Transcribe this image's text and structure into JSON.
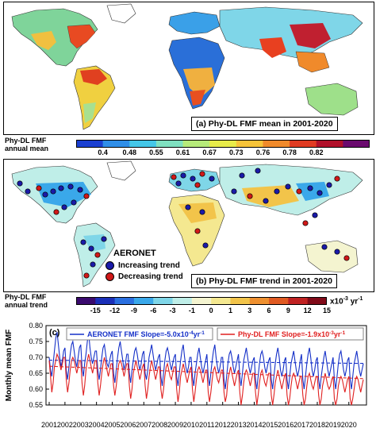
{
  "chart_data": [
    {
      "type": "heatmap",
      "title": "(a) Phy-DL FMF mean in 2001-2020",
      "colorbar": {
        "label_line1": "Phy-DL FMF",
        "label_line2": "annual mean",
        "ticks": [
          "0.4",
          "0.48",
          "0.55",
          "0.61",
          "0.67",
          "0.73",
          "0.76",
          "0.78",
          "0.82"
        ],
        "colors": [
          "#1a3fd1",
          "#2f8ee8",
          "#44c7e8",
          "#7fe0c0",
          "#b6ea7a",
          "#e8ec4a",
          "#f7c43a",
          "#f08a2b",
          "#e03b22",
          "#b0102a",
          "#6a0a6e"
        ]
      }
    },
    {
      "type": "heatmap",
      "title": "(b) Phy-DL FMF trend in 2001-2020",
      "annotation": "AERONET",
      "legend": [
        {
          "label": "Increasing trend",
          "color": "#1a1aa8"
        },
        {
          "label": "Decreasing trend",
          "color": "#d01818"
        }
      ],
      "colorbar": {
        "label_line1": "Phy-DL FMF",
        "label_line2": "annual trend",
        "ticks": [
          "-15",
          "-12",
          "-9",
          "-6",
          "-3",
          "-1",
          "0",
          "1",
          "3",
          "6",
          "9",
          "12",
          "15"
        ],
        "unit": "x10",
        "unit_exp": "-3",
        "unit_suffix": "yr",
        "unit_suffix_exp": "-1",
        "colors": [
          "#3a0a6e",
          "#1a2fb8",
          "#2a6fe0",
          "#3aa8ea",
          "#7fd6e8",
          "#bfeee8",
          "#f4f4d0",
          "#f4e890",
          "#f2c44a",
          "#ee9030",
          "#e05a22",
          "#c02222",
          "#800a18"
        ]
      }
    },
    {
      "type": "line",
      "panel_label": "(c)",
      "ylabel": "Monthly mean FMF",
      "ylim": [
        0.55,
        0.8
      ],
      "yticks": [
        "0.55",
        "0.60",
        "0.65",
        "0.70",
        "0.75",
        "0.80"
      ],
      "xticks": [
        "2001",
        "2002",
        "2003",
        "2004",
        "2005",
        "2006",
        "2007",
        "2008",
        "2009",
        "2010",
        "2011",
        "2012",
        "2013",
        "2014",
        "2015",
        "2016",
        "2017",
        "2018",
        "2019",
        "2020"
      ],
      "series": [
        {
          "name": "AERONET FMF Slope=-5.0x10",
          "name_exp": "-4",
          "name_suffix": "yr",
          "name_suffix_exp": "-1",
          "color": "#1530c8",
          "trend": [
            0.691,
            0.681
          ],
          "values": [
            0.7,
            0.66,
            0.64,
            0.68,
            0.72,
            0.76,
            0.78,
            0.74,
            0.7,
            0.67,
            0.69,
            0.72,
            0.73,
            0.66,
            0.63,
            0.67,
            0.71,
            0.74,
            0.75,
            0.72,
            0.69,
            0.67,
            0.7,
            0.73,
            0.74,
            0.67,
            0.64,
            0.68,
            0.71,
            0.75,
            0.78,
            0.73,
            0.7,
            0.68,
            0.7,
            0.72,
            0.72,
            0.66,
            0.63,
            0.66,
            0.7,
            0.73,
            0.74,
            0.71,
            0.68,
            0.67,
            0.69,
            0.71,
            0.72,
            0.65,
            0.62,
            0.66,
            0.7,
            0.73,
            0.75,
            0.72,
            0.69,
            0.66,
            0.68,
            0.71,
            0.71,
            0.65,
            0.62,
            0.66,
            0.69,
            0.72,
            0.73,
            0.71,
            0.68,
            0.66,
            0.68,
            0.71,
            0.72,
            0.65,
            0.63,
            0.66,
            0.7,
            0.72,
            0.74,
            0.71,
            0.68,
            0.66,
            0.68,
            0.7,
            0.71,
            0.64,
            0.61,
            0.65,
            0.69,
            0.72,
            0.73,
            0.71,
            0.68,
            0.66,
            0.68,
            0.7,
            0.71,
            0.64,
            0.61,
            0.65,
            0.69,
            0.72,
            0.74,
            0.7,
            0.67,
            0.65,
            0.67,
            0.7,
            0.7,
            0.64,
            0.61,
            0.65,
            0.68,
            0.71,
            0.73,
            0.7,
            0.67,
            0.65,
            0.67,
            0.69,
            0.71,
            0.64,
            0.61,
            0.65,
            0.69,
            0.72,
            0.74,
            0.7,
            0.67,
            0.65,
            0.67,
            0.7,
            0.7,
            0.63,
            0.6,
            0.64,
            0.68,
            0.71,
            0.72,
            0.7,
            0.67,
            0.65,
            0.67,
            0.69,
            0.71,
            0.64,
            0.61,
            0.65,
            0.69,
            0.71,
            0.73,
            0.7,
            0.67,
            0.65,
            0.67,
            0.69,
            0.7,
            0.63,
            0.6,
            0.64,
            0.68,
            0.71,
            0.72,
            0.7,
            0.67,
            0.65,
            0.67,
            0.69,
            0.7,
            0.63,
            0.6,
            0.64,
            0.68,
            0.71,
            0.73,
            0.7,
            0.66,
            0.64,
            0.66,
            0.69,
            0.7,
            0.63,
            0.6,
            0.64,
            0.68,
            0.7,
            0.72,
            0.69,
            0.66,
            0.64,
            0.66,
            0.69,
            0.71,
            0.63,
            0.6,
            0.64,
            0.68,
            0.71,
            0.73,
            0.7,
            0.66,
            0.64,
            0.66,
            0.69,
            0.7,
            0.63,
            0.6,
            0.64,
            0.67,
            0.7,
            0.72,
            0.69,
            0.66,
            0.64,
            0.66,
            0.68,
            0.7,
            0.63,
            0.6,
            0.64,
            0.68,
            0.71,
            0.72,
            0.69,
            0.66,
            0.64,
            0.66,
            0.69,
            0.7,
            0.63,
            0.6,
            0.64,
            0.68,
            0.7,
            0.72,
            0.69,
            0.66,
            0.64,
            0.66,
            0.68
          ]
        },
        {
          "name": "Phy-DL FMF Slope=-1.9x10",
          "name_exp": "-3",
          "name_suffix": "yr",
          "name_suffix_exp": "-1",
          "color": "#e02020",
          "trend": [
            0.672,
            0.633
          ],
          "values": [
            0.69,
            0.64,
            0.59,
            0.62,
            0.67,
            0.69,
            0.71,
            0.7,
            0.68,
            0.66,
            0.68,
            0.7,
            0.7,
            0.63,
            0.59,
            0.62,
            0.66,
            0.69,
            0.7,
            0.69,
            0.67,
            0.65,
            0.67,
            0.69,
            0.69,
            0.62,
            0.58,
            0.61,
            0.66,
            0.69,
            0.71,
            0.69,
            0.67,
            0.65,
            0.67,
            0.69,
            0.69,
            0.62,
            0.58,
            0.61,
            0.65,
            0.68,
            0.7,
            0.68,
            0.66,
            0.64,
            0.66,
            0.68,
            0.68,
            0.61,
            0.58,
            0.61,
            0.65,
            0.68,
            0.69,
            0.68,
            0.66,
            0.64,
            0.66,
            0.68,
            0.68,
            0.61,
            0.57,
            0.6,
            0.65,
            0.67,
            0.69,
            0.67,
            0.65,
            0.63,
            0.65,
            0.67,
            0.68,
            0.61,
            0.57,
            0.6,
            0.64,
            0.67,
            0.69,
            0.67,
            0.65,
            0.63,
            0.65,
            0.67,
            0.67,
            0.6,
            0.57,
            0.6,
            0.64,
            0.67,
            0.68,
            0.66,
            0.64,
            0.63,
            0.65,
            0.67,
            0.67,
            0.6,
            0.56,
            0.59,
            0.64,
            0.66,
            0.68,
            0.66,
            0.64,
            0.62,
            0.64,
            0.66,
            0.67,
            0.6,
            0.56,
            0.59,
            0.63,
            0.66,
            0.67,
            0.66,
            0.64,
            0.62,
            0.64,
            0.66,
            0.66,
            0.59,
            0.56,
            0.59,
            0.63,
            0.66,
            0.67,
            0.65,
            0.63,
            0.62,
            0.64,
            0.66,
            0.66,
            0.59,
            0.56,
            0.58,
            0.63,
            0.65,
            0.67,
            0.65,
            0.63,
            0.61,
            0.63,
            0.65,
            0.66,
            0.59,
            0.55,
            0.58,
            0.62,
            0.65,
            0.66,
            0.65,
            0.63,
            0.61,
            0.63,
            0.65,
            0.65,
            0.59,
            0.55,
            0.58,
            0.62,
            0.65,
            0.66,
            0.64,
            0.62,
            0.61,
            0.63,
            0.65,
            0.65,
            0.58,
            0.55,
            0.58,
            0.62,
            0.64,
            0.66,
            0.64,
            0.62,
            0.6,
            0.62,
            0.64,
            0.65,
            0.58,
            0.55,
            0.57,
            0.61,
            0.64,
            0.65,
            0.64,
            0.62,
            0.6,
            0.62,
            0.64,
            0.64,
            0.58,
            0.55,
            0.57,
            0.61,
            0.64,
            0.65,
            0.63,
            0.61,
            0.6,
            0.62,
            0.64,
            0.64,
            0.58,
            0.55,
            0.57,
            0.61,
            0.63,
            0.65,
            0.63,
            0.61,
            0.6,
            0.61,
            0.63,
            0.64,
            0.57,
            0.55,
            0.57,
            0.61,
            0.63,
            0.64,
            0.63,
            0.61,
            0.59,
            0.61,
            0.63,
            0.64,
            0.57,
            0.55,
            0.57,
            0.6,
            0.63,
            0.64,
            0.63,
            0.61,
            0.59,
            0.61,
            0.63
          ]
        }
      ]
    }
  ]
}
